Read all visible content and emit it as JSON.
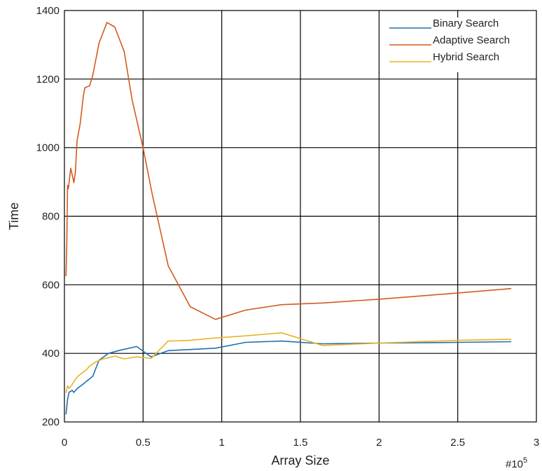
{
  "chart_data": {
    "type": "line",
    "title": "",
    "xlabel": "Array Size",
    "ylabel": "Time",
    "x_multiplier_label": "#10",
    "x_multiplier_exponent": "5",
    "xlim": [
      0,
      3
    ],
    "ylim": [
      200,
      1400
    ],
    "xticks": [
      0,
      0.5,
      1,
      1.5,
      2,
      2.5,
      3
    ],
    "xtick_labels": [
      "0",
      "0.5",
      "1",
      "1.5",
      "2",
      "2.5",
      "3"
    ],
    "yticks": [
      200,
      400,
      600,
      800,
      1000,
      1200,
      1400
    ],
    "ytick_labels": [
      "200",
      "400",
      "600",
      "800",
      "1000",
      "1200",
      "1400"
    ],
    "grid": true,
    "legend_position": "top-right",
    "series": [
      {
        "name": "Binary Search",
        "color": "#1f6fb0",
        "x": [
          0.01,
          0.02,
          0.03,
          0.05,
          0.06,
          0.08,
          0.12,
          0.18,
          0.22,
          0.28,
          0.36,
          0.46,
          0.55,
          0.66,
          0.96,
          1.15,
          1.38,
          1.64,
          2.0,
          2.5,
          2.84
        ],
        "y": [
          222,
          265,
          287,
          292,
          286,
          297,
          311,
          333,
          380,
          400,
          410,
          420,
          390,
          408,
          415,
          432,
          436,
          428,
          430,
          432,
          434
        ]
      },
      {
        "name": "Adaptive Search",
        "color": "#d45a1f",
        "x": [
          0.01,
          0.015,
          0.02,
          0.025,
          0.03,
          0.04,
          0.05,
          0.06,
          0.07,
          0.08,
          0.1,
          0.12,
          0.13,
          0.16,
          0.18,
          0.22,
          0.27,
          0.32,
          0.38,
          0.43,
          0.5,
          0.56,
          0.66,
          0.8,
          0.96,
          1.15,
          1.38,
          1.64,
          2.0,
          2.5,
          2.84
        ],
        "y": [
          625,
          720,
          890,
          880,
          900,
          940,
          920,
          898,
          930,
          1020,
          1070,
          1150,
          1175,
          1180,
          1210,
          1305,
          1365,
          1352,
          1280,
          1140,
          1000,
          860,
          655,
          536,
          499,
          526,
          542,
          547,
          558,
          576,
          589
        ]
      },
      {
        "name": "Hybrid Search",
        "color": "#e8b324",
        "x": [
          0.01,
          0.02,
          0.03,
          0.05,
          0.07,
          0.09,
          0.12,
          0.14,
          0.16,
          0.2,
          0.24,
          0.32,
          0.38,
          0.46,
          0.55,
          0.66,
          0.8,
          0.96,
          1.15,
          1.38,
          1.64,
          2.0,
          2.5,
          2.84
        ],
        "y": [
          285,
          305,
          298,
          310,
          325,
          335,
          346,
          352,
          363,
          375,
          383,
          392,
          384,
          390,
          385,
          436,
          438,
          445,
          451,
          460,
          423,
          430,
          438,
          441
        ]
      }
    ]
  }
}
